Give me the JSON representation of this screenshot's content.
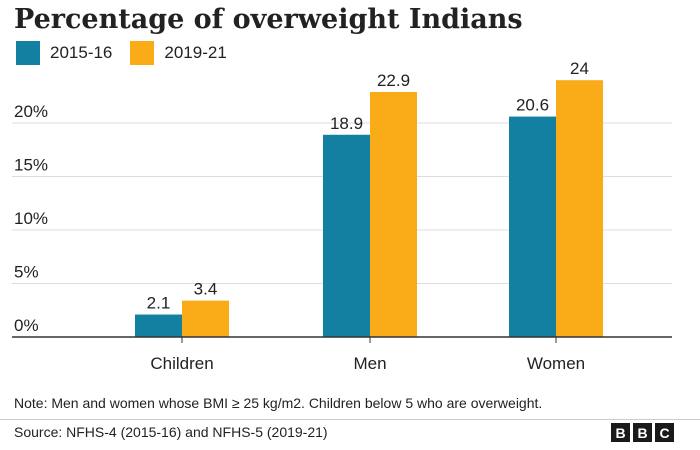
{
  "chart_data": {
    "type": "bar",
    "title": "Percentage of overweight Indians",
    "categories": [
      "Children",
      "Men",
      "Women"
    ],
    "series": [
      {
        "name": "2015-16",
        "values": [
          2.1,
          18.9,
          20.6
        ],
        "labels": [
          "2.1",
          "18.9",
          "20.6"
        ],
        "color": "#1380A1"
      },
      {
        "name": "2019-21",
        "values": [
          3.4,
          22.9,
          24
        ],
        "labels": [
          "3.4",
          "22.9",
          "24"
        ],
        "color": "#FAAB18"
      }
    ],
    "ylim": [
      0,
      24
    ],
    "yticks": [
      0,
      5,
      10,
      15,
      20
    ],
    "ytick_labels": [
      "0%",
      "5%",
      "10%",
      "15%",
      "20%"
    ],
    "grid": true,
    "legend": "top-left"
  },
  "note": "Note: Men and women whose BMI ≥ 25 kg/m2. Children below 5 who are overweight.",
  "source": "Source: NFHS-4 (2015-16) and NFHS-5 (2019-21)",
  "logo": [
    "B",
    "B",
    "C"
  ]
}
